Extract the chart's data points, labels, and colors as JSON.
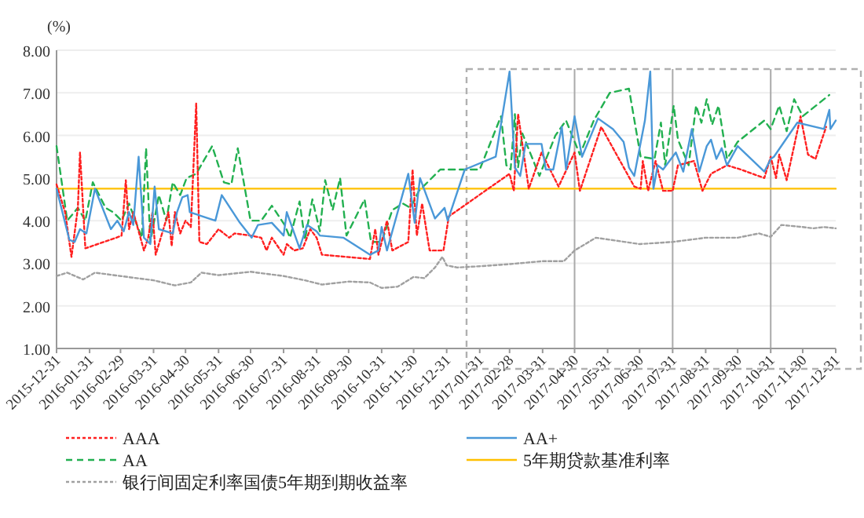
{
  "chart_data": {
    "type": "line",
    "ylabel": "(%)",
    "xlim": [
      "2015-12-31",
      "2017-12-31"
    ],
    "xticks": [
      "2015-12-31",
      "2016-01-31",
      "2016-02-29",
      "2016-03-31",
      "2016-04-30",
      "2016-05-31",
      "2016-06-30",
      "2016-07-31",
      "2016-08-31",
      "2016-09-30",
      "2016-10-31",
      "2016-11-30",
      "2016-12-31",
      "2017-01-31",
      "2017-02-28",
      "2017-03-31",
      "2017-04-30",
      "2017-05-31",
      "2017-06-30",
      "2017-07-31",
      "2017-08-31",
      "2017-09-30",
      "2017-10-31",
      "2017-11-30",
      "2017-12-31"
    ],
    "ylim": [
      1,
      8
    ],
    "yticks": [
      {
        "value": 1,
        "label": "1.00"
      },
      {
        "value": 2,
        "label": "2.00"
      },
      {
        "value": 3,
        "label": "3.00"
      },
      {
        "value": 4,
        "label": "4.00"
      },
      {
        "value": 5,
        "label": "5.00"
      },
      {
        "value": 6,
        "label": "6.00"
      },
      {
        "value": 7,
        "label": "7.00"
      },
      {
        "value": 8,
        "label": "8.00"
      }
    ],
    "grid": "y",
    "legend": "bottom",
    "ref_lines": [
      {
        "axis": "x",
        "value": "2017-04-30",
        "color": "#aaaaaa"
      },
      {
        "axis": "x",
        "value": "2017-07-31",
        "color": "#aaaaaa"
      },
      {
        "axis": "x",
        "value": "2017-10-31",
        "color": "#aaaaaa"
      }
    ],
    "series": [
      {
        "name": "AAA",
        "color": "#ff2020",
        "line_style": "dotted",
        "x": [
          "2015-12-31",
          "2016-01-08",
          "2016-01-14",
          "2016-01-20",
          "2016-01-22",
          "2016-01-27",
          "2016-02-25",
          "2016-03-01",
          "2016-03-05",
          "2016-03-08",
          "2016-03-12",
          "2016-03-22",
          "2016-03-26",
          "2016-03-30",
          "2016-04-02",
          "2016-04-14",
          "2016-04-17",
          "2016-04-20",
          "2016-04-25",
          "2016-04-30",
          "2016-05-05",
          "2016-05-10",
          "2016-05-13",
          "2016-05-20",
          "2016-05-31",
          "2016-06-10",
          "2016-06-15",
          "2016-06-30",
          "2016-07-10",
          "2016-07-15",
          "2016-07-20",
          "2016-07-31",
          "2016-08-03",
          "2016-08-10",
          "2016-08-18",
          "2016-08-25",
          "2016-08-31",
          "2016-09-05",
          "2016-10-20",
          "2016-10-25",
          "2016-10-28",
          "2016-11-05",
          "2016-11-10",
          "2016-11-25",
          "2016-11-29",
          "2016-12-03",
          "2016-12-08",
          "2016-12-15",
          "2016-12-28",
          "2017-01-02",
          "2017-02-28",
          "2017-03-04",
          "2017-03-08",
          "2017-03-18",
          "2017-03-30",
          "2017-04-15",
          "2017-04-30",
          "2017-05-05",
          "2017-05-25",
          "2017-06-25",
          "2017-07-01",
          "2017-07-03",
          "2017-07-08",
          "2017-07-15",
          "2017-07-22",
          "2017-07-31",
          "2017-08-05",
          "2017-08-20",
          "2017-08-28",
          "2017-09-05",
          "2017-09-20",
          "2017-10-03",
          "2017-10-25",
          "2017-10-31",
          "2017-11-05",
          "2017-11-08",
          "2017-11-15",
          "2017-11-28",
          "2017-12-05",
          "2017-12-12",
          "2017-12-22"
        ],
        "values": [
          4.85,
          4.2,
          3.15,
          4.3,
          5.6,
          3.35,
          3.6,
          3.65,
          4.95,
          3.8,
          4.2,
          3.3,
          3.6,
          4.2,
          3.2,
          4.2,
          3.4,
          4.2,
          3.7,
          4.0,
          3.85,
          6.75,
          3.5,
          3.45,
          3.8,
          3.6,
          3.7,
          3.65,
          3.6,
          3.3,
          3.6,
          3.2,
          3.45,
          3.3,
          3.35,
          3.8,
          3.6,
          3.2,
          3.1,
          3.8,
          3.2,
          4.0,
          3.3,
          3.5,
          5.2,
          3.65,
          4.4,
          3.3,
          3.3,
          4.1,
          5.1,
          4.7,
          6.5,
          4.75,
          5.6,
          4.8,
          5.6,
          4.7,
          6.2,
          4.8,
          4.75,
          5.4,
          4.7,
          5.4,
          4.7,
          4.7,
          5.3,
          5.4,
          4.7,
          5.1,
          5.3,
          5.2,
          5.0,
          5.5,
          5.0,
          5.55,
          4.95,
          6.45,
          5.55,
          5.45,
          6.2
        ]
      },
      {
        "name": "AA+",
        "color": "#4a98d8",
        "line_style": "solid",
        "x": [
          "2015-12-31",
          "2016-01-12",
          "2016-01-17",
          "2016-01-22",
          "2016-01-28",
          "2016-02-05",
          "2016-02-20",
          "2016-02-26",
          "2016-03-03",
          "2016-03-08",
          "2016-03-12",
          "2016-03-17",
          "2016-03-22",
          "2016-03-28",
          "2016-04-01",
          "2016-04-05",
          "2016-04-18",
          "2016-04-22",
          "2016-04-27",
          "2016-05-02",
          "2016-05-04",
          "2016-05-28",
          "2016-06-03",
          "2016-06-20",
          "2016-07-01",
          "2016-07-07",
          "2016-07-20",
          "2016-07-31",
          "2016-08-03",
          "2016-08-15",
          "2016-08-22",
          "2016-08-31",
          "2016-09-03",
          "2016-09-25",
          "2016-10-20",
          "2016-10-28",
          "2016-10-31",
          "2016-11-05",
          "2016-11-25",
          "2016-12-01",
          "2016-12-06",
          "2016-12-20",
          "2016-12-29",
          "2017-01-01",
          "2017-01-17",
          "2017-02-15",
          "2017-02-28",
          "2017-03-05",
          "2017-03-10",
          "2017-03-15",
          "2017-03-30",
          "2017-04-03",
          "2017-04-10",
          "2017-04-18",
          "2017-04-22",
          "2017-04-30",
          "2017-05-07",
          "2017-05-22",
          "2017-06-05",
          "2017-06-15",
          "2017-06-20",
          "2017-06-25",
          "2017-07-05",
          "2017-07-10",
          "2017-07-13",
          "2017-07-17",
          "2017-07-22",
          "2017-08-03",
          "2017-08-10",
          "2017-08-18",
          "2017-08-25",
          "2017-09-01",
          "2017-09-05",
          "2017-09-10",
          "2017-09-15",
          "2017-09-20",
          "2017-09-30",
          "2017-10-25",
          "2017-10-31",
          "2017-11-03",
          "2017-11-25",
          "2017-12-20",
          "2017-12-25",
          "2017-12-26",
          "2017-12-31"
        ],
        "values": [
          4.75,
          3.55,
          3.5,
          3.8,
          3.7,
          4.75,
          3.8,
          4.0,
          3.75,
          4.2,
          3.9,
          5.5,
          3.6,
          3.45,
          4.8,
          3.8,
          3.7,
          4.2,
          4.55,
          4.6,
          4.2,
          4.0,
          4.6,
          3.95,
          3.6,
          3.9,
          3.95,
          3.65,
          4.2,
          3.35,
          3.9,
          3.75,
          3.65,
          3.6,
          3.2,
          3.3,
          3.85,
          3.3,
          5.1,
          3.95,
          5.0,
          4.05,
          4.3,
          4.0,
          5.2,
          5.5,
          7.5,
          5.25,
          5.05,
          5.8,
          5.8,
          5.2,
          5.2,
          6.2,
          5.2,
          6.45,
          5.5,
          6.4,
          6.15,
          5.85,
          5.25,
          5.05,
          6.35,
          7.5,
          4.75,
          5.3,
          5.2,
          5.6,
          5.15,
          6.15,
          5.15,
          5.75,
          5.9,
          5.45,
          5.7,
          5.3,
          5.75,
          5.15,
          5.45,
          5.5,
          6.3,
          6.15,
          6.6,
          6.15,
          6.35
        ]
      },
      {
        "name": "AA",
        "color": "#22b050",
        "line_style": "dashed",
        "x": [
          "2015-12-31",
          "2016-01-10",
          "2016-01-20",
          "2016-01-27",
          "2016-02-03",
          "2016-02-15",
          "2016-02-22",
          "2016-03-01",
          "2016-03-08",
          "2016-03-20",
          "2016-03-24",
          "2016-03-28",
          "2016-04-05",
          "2016-04-12",
          "2016-04-18",
          "2016-04-25",
          "2016-05-01",
          "2016-05-10",
          "2016-05-25",
          "2016-06-05",
          "2016-06-12",
          "2016-06-18",
          "2016-06-30",
          "2016-07-10",
          "2016-07-20",
          "2016-08-01",
          "2016-08-06",
          "2016-08-15",
          "2016-08-20",
          "2016-08-27",
          "2016-09-03",
          "2016-09-08",
          "2016-09-15",
          "2016-09-22",
          "2016-09-28",
          "2016-10-15",
          "2016-10-21",
          "2016-10-31",
          "2016-11-10",
          "2016-11-20",
          "2016-11-27",
          "2016-12-05",
          "2016-12-25",
          "2017-01-10",
          "2017-01-31",
          "2017-02-20",
          "2017-02-25",
          "2017-03-01",
          "2017-03-05",
          "2017-03-08",
          "2017-03-12",
          "2017-03-28",
          "2017-04-12",
          "2017-04-22",
          "2017-05-05",
          "2017-05-18",
          "2017-06-02",
          "2017-06-20",
          "2017-07-01",
          "2017-07-14",
          "2017-07-20",
          "2017-07-24",
          "2017-08-01",
          "2017-08-05",
          "2017-08-15",
          "2017-08-22",
          "2017-08-27",
          "2017-09-01",
          "2017-09-06",
          "2017-09-12",
          "2017-09-20",
          "2017-09-30",
          "2017-10-25",
          "2017-10-31",
          "2017-11-08",
          "2017-11-15",
          "2017-11-22",
          "2017-11-30",
          "2017-12-25"
        ],
        "values": [
          5.75,
          4.0,
          4.3,
          4.0,
          4.9,
          4.3,
          4.2,
          4.0,
          4.4,
          3.6,
          5.7,
          3.5,
          4.6,
          4.0,
          4.9,
          4.6,
          5.0,
          5.1,
          5.75,
          4.9,
          4.85,
          5.7,
          4.0,
          4.0,
          4.35,
          3.9,
          3.6,
          4.45,
          3.55,
          4.5,
          3.75,
          4.95,
          4.25,
          5.0,
          3.65,
          4.5,
          3.5,
          3.5,
          4.25,
          4.4,
          4.3,
          4.7,
          5.2,
          5.2,
          5.2,
          6.45,
          5.3,
          5.2,
          6.5,
          5.25,
          6.05,
          5.05,
          6.0,
          6.35,
          5.55,
          6.35,
          7.0,
          7.1,
          5.5,
          5.45,
          6.3,
          5.3,
          6.7,
          5.9,
          5.3,
          6.7,
          6.3,
          6.85,
          6.25,
          6.7,
          5.45,
          5.85,
          6.35,
          6.15,
          6.7,
          6.1,
          6.85,
          6.45,
          6.95
        ]
      },
      {
        "name": "5年期贷款基准利率",
        "color": "#ffc000",
        "line_style": "solid",
        "x": [
          "2015-12-31",
          "2017-12-31"
        ],
        "values": [
          4.75,
          4.75
        ]
      },
      {
        "name": "银行间固定利率国债5年期到期收益率",
        "color": "#a0a0a0",
        "line_style": "dotted",
        "x": [
          "2015-12-31",
          "2016-01-10",
          "2016-01-25",
          "2016-02-05",
          "2016-02-29",
          "2016-03-31",
          "2016-04-20",
          "2016-05-05",
          "2016-05-15",
          "2016-05-31",
          "2016-06-30",
          "2016-07-31",
          "2016-08-20",
          "2016-09-05",
          "2016-09-30",
          "2016-10-20",
          "2016-10-31",
          "2016-11-15",
          "2016-11-30",
          "2016-12-10",
          "2016-12-20",
          "2016-12-27",
          "2016-12-31",
          "2017-01-10",
          "2017-01-31",
          "2017-02-28",
          "2017-03-31",
          "2017-04-20",
          "2017-04-30",
          "2017-05-20",
          "2017-06-30",
          "2017-07-31",
          "2017-08-31",
          "2017-09-30",
          "2017-10-20",
          "2017-10-31",
          "2017-11-10",
          "2017-11-30",
          "2017-12-10",
          "2017-12-20",
          "2017-12-31"
        ],
        "values": [
          2.7,
          2.78,
          2.62,
          2.78,
          2.7,
          2.6,
          2.48,
          2.55,
          2.78,
          2.72,
          2.8,
          2.7,
          2.6,
          2.5,
          2.57,
          2.55,
          2.42,
          2.45,
          2.68,
          2.65,
          2.9,
          3.15,
          2.95,
          2.9,
          2.93,
          2.98,
          3.05,
          3.05,
          3.3,
          3.6,
          3.45,
          3.5,
          3.6,
          3.6,
          3.7,
          3.62,
          3.9,
          3.85,
          3.82,
          3.85,
          3.82
        ]
      }
    ]
  }
}
